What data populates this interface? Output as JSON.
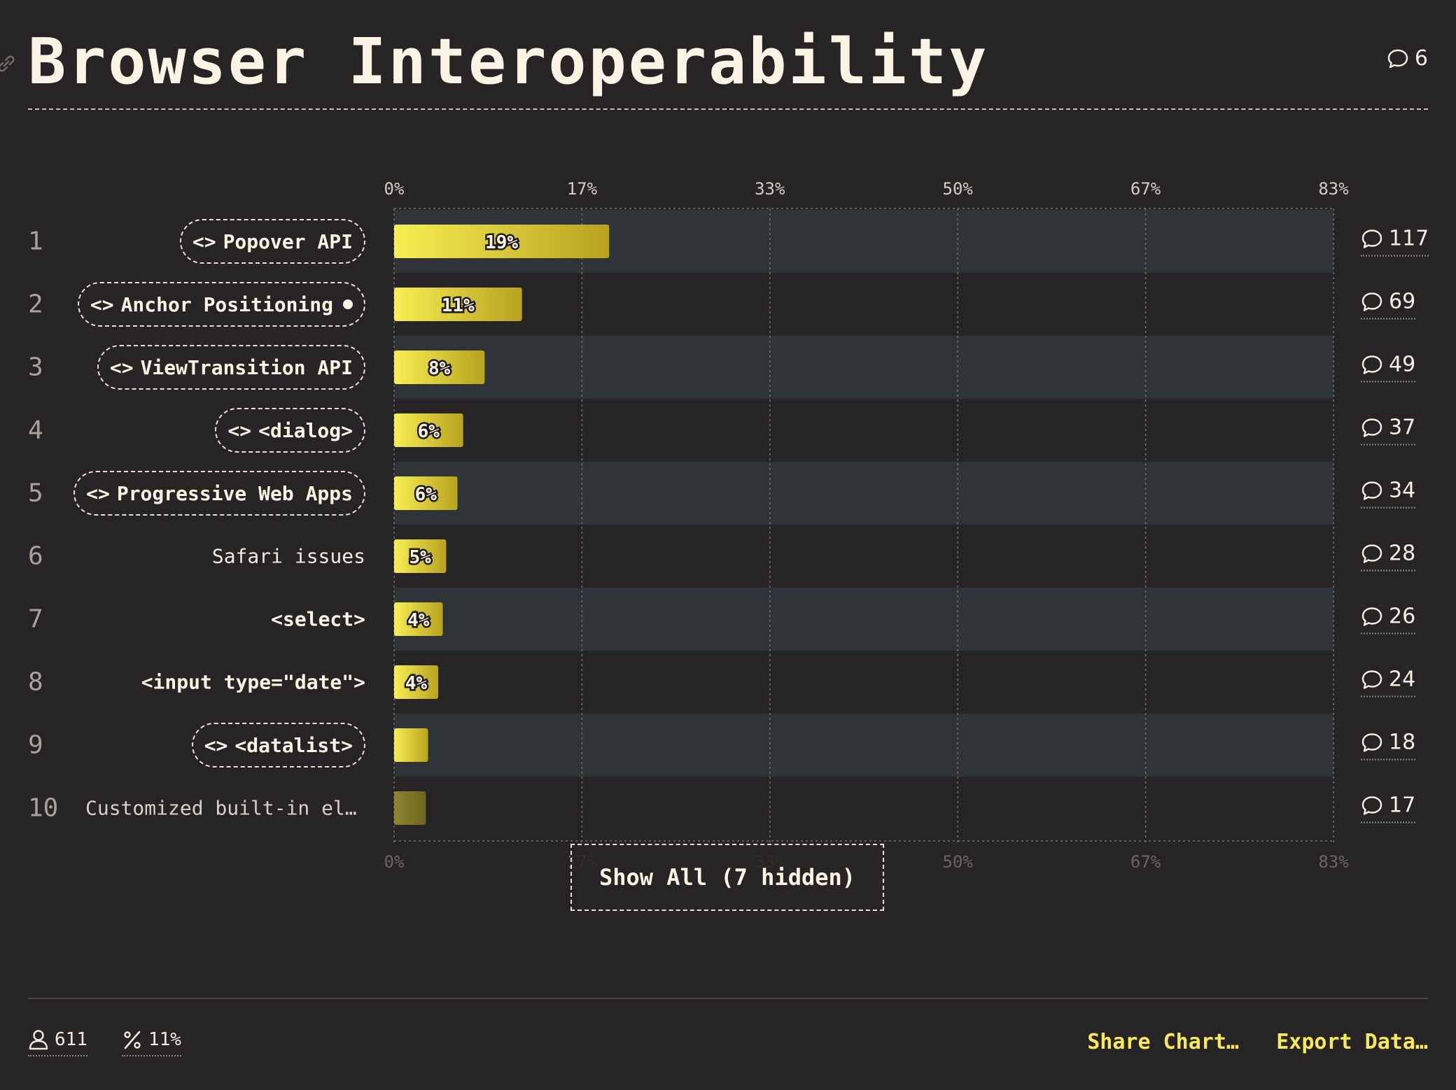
{
  "header": {
    "title": "Browser Interoperability",
    "comment_count": "6"
  },
  "chart_data": {
    "type": "bar",
    "orientation": "horizontal",
    "title": "Browser Interoperability",
    "xlim": [
      0,
      83
    ],
    "x_ticks": [
      "0%",
      "17%",
      "33%",
      "50%",
      "67%",
      "83%"
    ],
    "x_tick_values": [
      0,
      16.6,
      33.2,
      49.8,
      66.4,
      83
    ],
    "grid": true,
    "rows": [
      {
        "rank": "1",
        "label": "Popover API",
        "style": "pill",
        "value": 19,
        "value_label": "19%",
        "comments": "117"
      },
      {
        "rank": "2",
        "label": "Anchor Positioning",
        "style": "pill-dot",
        "value": 11.3,
        "value_label": "11%",
        "comments": "69"
      },
      {
        "rank": "3",
        "label": "ViewTransition API",
        "style": "pill",
        "value": 8,
        "value_label": "8%",
        "comments": "49"
      },
      {
        "rank": "4",
        "label": "<dialog>",
        "style": "pill",
        "value": 6.1,
        "value_label": "6%",
        "comments": "37"
      },
      {
        "rank": "5",
        "label": "Progressive Web Apps",
        "style": "pill",
        "value": 5.6,
        "value_label": "6%",
        "comments": "34"
      },
      {
        "rank": "6",
        "label": "Safari issues",
        "style": "plain",
        "value": 4.6,
        "value_label": "5%",
        "comments": "28"
      },
      {
        "rank": "7",
        "label": "<select>",
        "style": "bold",
        "value": 4.3,
        "value_label": "4%",
        "comments": "26"
      },
      {
        "rank": "8",
        "label": "<input type=\"date\">",
        "style": "bold",
        "value": 3.9,
        "value_label": "4%",
        "comments": "24"
      },
      {
        "rank": "9",
        "label": "<datalist>",
        "style": "pill",
        "value": 3,
        "value_label": "",
        "comments": "18"
      },
      {
        "rank": "10",
        "label": "Customized built-in elem…",
        "style": "dim",
        "value": 2.8,
        "value_label": "",
        "comments": "17"
      }
    ]
  },
  "show_all_label": "Show All (7 hidden)",
  "footer": {
    "respondents": "611",
    "percent": "11%",
    "share_label": "Share Chart…",
    "export_label": "Export Data…"
  },
  "colors": {
    "background": "#272425",
    "band": "#2e3437",
    "bar_light": "#f7ef52",
    "bar_dark": "#b8a21f",
    "accent": "#f7e95a"
  }
}
